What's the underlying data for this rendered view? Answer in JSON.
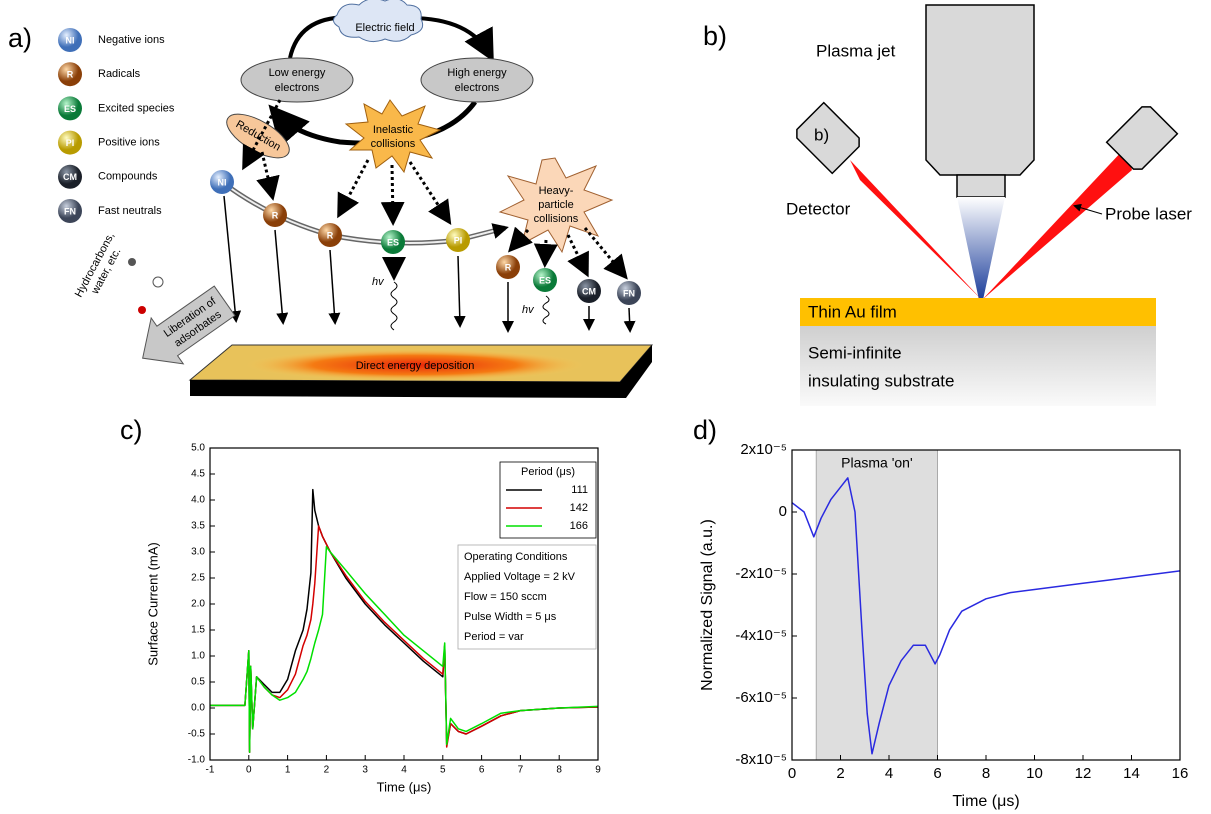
{
  "panel_labels": [
    "a)",
    "b)",
    "c)",
    "d)"
  ],
  "diagram_a": {
    "legend": [
      {
        "abbr": "NI",
        "label": "Negative ions"
      },
      {
        "abbr": "R",
        "label": "Radicals"
      },
      {
        "abbr": "ES",
        "label": "Excited species"
      },
      {
        "abbr": "PI",
        "label": "Positive ions"
      },
      {
        "abbr": "CM",
        "label": "Compounds"
      },
      {
        "abbr": "FN",
        "label": "Fast neutrals"
      }
    ],
    "electric_field": "Electric field",
    "low_energy": [
      "Low energy",
      "electrons"
    ],
    "high_energy": [
      "High energy",
      "electrons"
    ],
    "reduction": "Reduction",
    "inelastic": [
      "Inelastic",
      "collisions"
    ],
    "heavy_particle": [
      "Heavy-",
      "particle",
      "collisions"
    ],
    "balls": [
      "NI",
      "R",
      "R",
      "ES",
      "PI",
      "R",
      "ES",
      "CM",
      "FN"
    ],
    "hv": [
      "hv",
      "hv"
    ],
    "deposition": "Direct energy  deposition",
    "liberation": [
      "Liberation of",
      "adsorbates"
    ],
    "hydrocarbons": [
      "Hydrocarbons,",
      "water, etc."
    ]
  },
  "diagram_b": {
    "inner_label": "b)",
    "plasma_jet": "Plasma jet",
    "detector": "Detector",
    "probe_laser": "Probe laser",
    "film": "Thin Au film",
    "substrate": [
      "Semi-infinite",
      "insulating substrate"
    ]
  },
  "chart_data": [
    {
      "type": "line",
      "xlabel": "Time (μs)",
      "ylabel": "Surface Current (mA)",
      "xlim": [
        -1,
        9
      ],
      "xticks": [
        -1,
        0,
        1,
        2,
        3,
        4,
        5,
        6,
        7,
        8,
        9
      ],
      "ylim": [
        -1,
        5
      ],
      "yticks": [
        {
          "value": -1,
          "label": "-1.0"
        },
        {
          "value": -0.5,
          "label": "-0.5"
        },
        {
          "value": 0,
          "label": "0.0"
        },
        {
          "value": 0.5,
          "label": "0.5"
        },
        {
          "value": 1,
          "label": "1.0"
        },
        {
          "value": 1.5,
          "label": "1.5"
        },
        {
          "value": 2,
          "label": "2.0"
        },
        {
          "value": 2.5,
          "label": "2.5"
        },
        {
          "value": 3,
          "label": "3.0"
        },
        {
          "value": 3.5,
          "label": "3.5"
        },
        {
          "value": 4,
          "label": "4.0"
        },
        {
          "value": 4.5,
          "label": "4.5"
        },
        {
          "value": 5,
          "label": "5.0"
        }
      ],
      "legend_title": "Period (μs)",
      "legend": "upper right",
      "x": [
        -1,
        -0.5,
        -0.1,
        0,
        0.02,
        0.05,
        0.1,
        0.2,
        0.4,
        0.6,
        0.8,
        1.0,
        1.2,
        1.4,
        1.5,
        1.6,
        1.65,
        1.7,
        1.8,
        1.9,
        2.0,
        2.1,
        2.5,
        3.0,
        3.5,
        4.0,
        4.5,
        5.0,
        5.05,
        5.1,
        5.2,
        5.4,
        5.6,
        6.0,
        6.5,
        7.0,
        8.0,
        9.0
      ],
      "series": [
        {
          "name": "111",
          "color": "#000000",
          "values": [
            0.05,
            0.05,
            0.05,
            1.1,
            -0.85,
            0.8,
            -0.4,
            0.6,
            0.45,
            0.3,
            0.3,
            0.55,
            1.1,
            1.5,
            1.9,
            2.6,
            4.2,
            3.8,
            3.5,
            3.3,
            3.15,
            3.0,
            2.5,
            2.0,
            1.6,
            1.25,
            0.9,
            0.6,
            1.2,
            -0.7,
            -0.3,
            -0.45,
            -0.5,
            -0.35,
            -0.15,
            -0.05,
            0.0,
            0.02
          ]
        },
        {
          "name": "142",
          "color": "#d40000",
          "values": [
            0.05,
            0.05,
            0.05,
            1.1,
            -0.85,
            0.8,
            -0.4,
            0.6,
            0.4,
            0.25,
            0.2,
            0.35,
            0.65,
            1.2,
            1.4,
            1.7,
            2.0,
            2.4,
            3.5,
            3.3,
            3.15,
            3.0,
            2.55,
            2.05,
            1.65,
            1.3,
            0.95,
            0.65,
            1.2,
            -0.75,
            -0.3,
            -0.45,
            -0.5,
            -0.35,
            -0.15,
            -0.05,
            0.0,
            0.02
          ]
        },
        {
          "name": "166",
          "color": "#00e000",
          "values": [
            0.05,
            0.05,
            0.05,
            1.1,
            -0.85,
            0.8,
            -0.4,
            0.6,
            0.4,
            0.25,
            0.15,
            0.2,
            0.3,
            0.55,
            0.7,
            0.95,
            1.1,
            1.25,
            1.5,
            1.8,
            3.1,
            3.0,
            2.65,
            2.2,
            1.8,
            1.4,
            1.1,
            0.8,
            1.25,
            -0.7,
            -0.2,
            -0.4,
            -0.45,
            -0.3,
            -0.1,
            -0.05,
            0.0,
            0.03
          ]
        }
      ],
      "annotations": [
        "Operating Conditions",
        "Applied Voltage = 2 kV",
        "Flow = 150 sccm",
        "Pulse Width = 5 μs",
        "Period = var"
      ]
    },
    {
      "type": "line",
      "xlabel": "Time (μs)",
      "ylabel": "Normalized Signal (a.u.)",
      "xlim": [
        0,
        16
      ],
      "xticks": [
        0,
        2,
        4,
        6,
        8,
        10,
        12,
        14,
        16
      ],
      "ylim": [
        -8e-05,
        2e-05
      ],
      "yticks": [
        {
          "value": -8e-05,
          "label": "-8x10⁻⁵"
        },
        {
          "value": -6e-05,
          "label": "-6x10⁻⁵"
        },
        {
          "value": -4e-05,
          "label": "-4x10⁻⁵"
        },
        {
          "value": -2e-05,
          "label": "-2x10⁻⁵"
        },
        0,
        {
          "value": 2e-05,
          "label": "2x10⁻⁵"
        }
      ],
      "shade": [
        1,
        6
      ],
      "shade_label": "Plasma 'on'",
      "x": [
        0,
        0.5,
        0.9,
        1.2,
        1.6,
        2.0,
        2.3,
        2.6,
        2.9,
        3.1,
        3.3,
        3.6,
        4.0,
        4.5,
        5.0,
        5.5,
        5.9,
        6.1,
        6.5,
        7,
        8,
        9,
        10,
        11,
        12,
        13,
        14,
        15,
        16
      ],
      "series": [
        {
          "color": "#2a2ae0",
          "values": [
            3e-06,
            0,
            -8e-06,
            -2e-06,
            4e-06,
            8e-06,
            1.1e-05,
            0,
            -4e-05,
            -6.5e-05,
            -7.8e-05,
            -6.8e-05,
            -5.6e-05,
            -4.8e-05,
            -4.3e-05,
            -4.3e-05,
            -4.9e-05,
            -4.6e-05,
            -3.8e-05,
            -3.2e-05,
            -2.8e-05,
            -2.6e-05,
            -2.5e-05,
            -2.4e-05,
            -2.3e-05,
            -2.2e-05,
            -2.1e-05,
            -2e-05,
            -1.9e-05
          ]
        }
      ]
    }
  ]
}
